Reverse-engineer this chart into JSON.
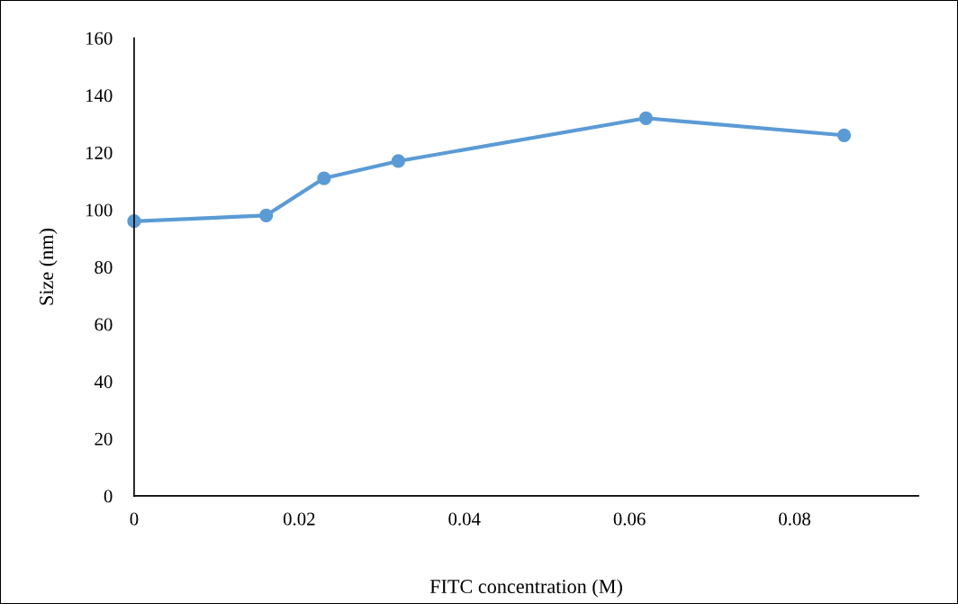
{
  "chart_data": {
    "type": "line",
    "xlabel": "FITC concentration (M)",
    "ylabel": "Size (nm)",
    "x": [
      0,
      0.016,
      0.023,
      0.032,
      0.062,
      0.086
    ],
    "series": [
      {
        "color": "#5b9bd5",
        "values": [
          96,
          98,
          111,
          117,
          132,
          126
        ]
      }
    ],
    "xlim": [
      0,
      0.095
    ],
    "xticks": [
      0,
      0.02,
      0.04,
      0.06,
      0.08
    ],
    "ylim": [
      0,
      160
    ],
    "yticks": [
      0,
      20,
      40,
      60,
      80,
      100,
      120,
      140,
      160
    ],
    "marker": "circle",
    "line_style": "solid"
  }
}
